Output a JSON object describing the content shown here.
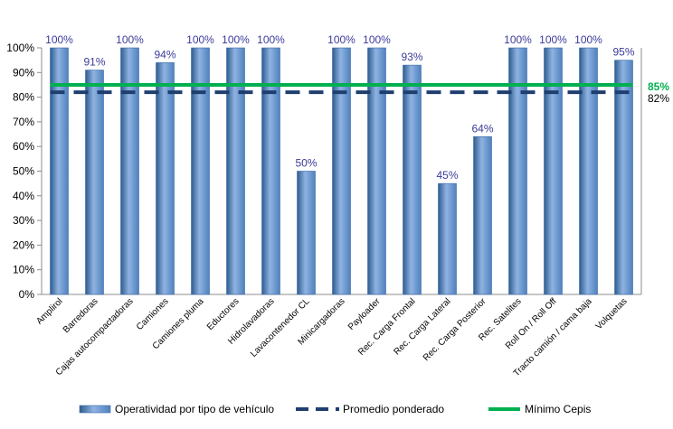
{
  "chart_data": {
    "type": "bar",
    "categories": [
      "Amplirol",
      "Barredoras",
      "Cajas autocompactadoras",
      "Camiones",
      "Camiones pluma",
      "Eductores",
      "Hidrolavadoras",
      "Lavacontenedor CL",
      "Minicargadoras",
      "Payloader",
      "Rec. Carga Frontal",
      "Rec. Carga Lateral",
      "Rec. Carga Posterior",
      "Rec. Satelites",
      "Roll On / Roll Off",
      "Tracto camión / cama baja",
      "Volquetas"
    ],
    "series": [
      {
        "name": "Operatividad por tipo de vehículo",
        "values": [
          100,
          91,
          100,
          94,
          100,
          100,
          100,
          50,
          100,
          100,
          93,
          45,
          64,
          100,
          100,
          100,
          95
        ],
        "labels": [
          "100%",
          "91%",
          "100%",
          "94%",
          "100%",
          "100%",
          "100%",
          "50%",
          "100%",
          "100%",
          "93%",
          "45%",
          "64%",
          "100%",
          "100%",
          "100%",
          "95%"
        ]
      }
    ],
    "reference_lines": [
      {
        "name": "Promedio ponderado",
        "value": 82,
        "label": "82%",
        "style": "dashed",
        "color": "#1f3f6e"
      },
      {
        "name": "Mínimo Cepis",
        "value": 85,
        "label": "85%",
        "style": "solid",
        "color": "#00b050"
      }
    ],
    "yticks": [
      "0%",
      "10%",
      "20%",
      "30%",
      "40%",
      "50%",
      "60%",
      "70%",
      "80%",
      "90%",
      "100%"
    ],
    "ylim": [
      0,
      100
    ],
    "grid": false,
    "legend": "bottom",
    "colors": {
      "bar": "#4f81bd",
      "bar_dark": "#2e5c8e",
      "bar_light": "#8fb3e2",
      "data_label": "#3b3b9a"
    }
  }
}
